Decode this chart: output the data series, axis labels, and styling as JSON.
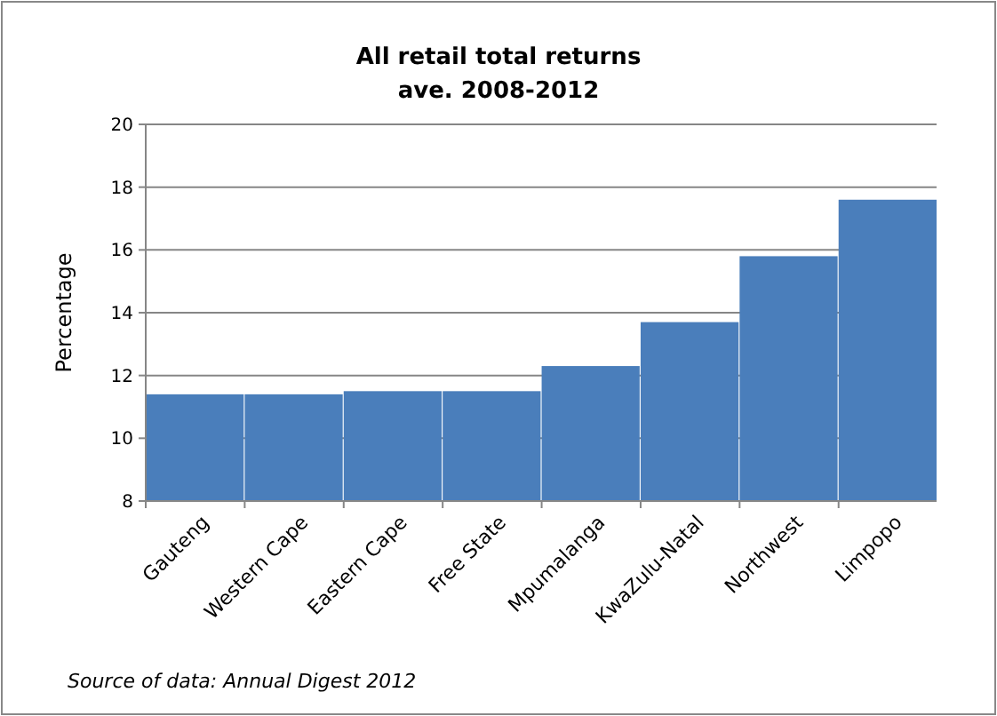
{
  "chart_data": {
    "type": "bar",
    "title": "All retail total returns\nave. 2008-2012",
    "ylabel": "Percentage",
    "categories": [
      "Gauteng",
      "Western Cape",
      "Eastern Cape",
      "Free State",
      "Mpumalanga",
      "KwaZulu-Natal",
      "Northwest",
      "Limpopo"
    ],
    "values": [
      11.4,
      11.4,
      11.5,
      11.5,
      12.3,
      13.7,
      15.8,
      17.6
    ],
    "color": "#4a7ebb",
    "ylim": [
      8,
      20
    ],
    "yticks": [
      8,
      10,
      12,
      14,
      16,
      18,
      20
    ],
    "grid": "y",
    "annotations": [
      "Source of data: Annual Digest 2012"
    ]
  }
}
